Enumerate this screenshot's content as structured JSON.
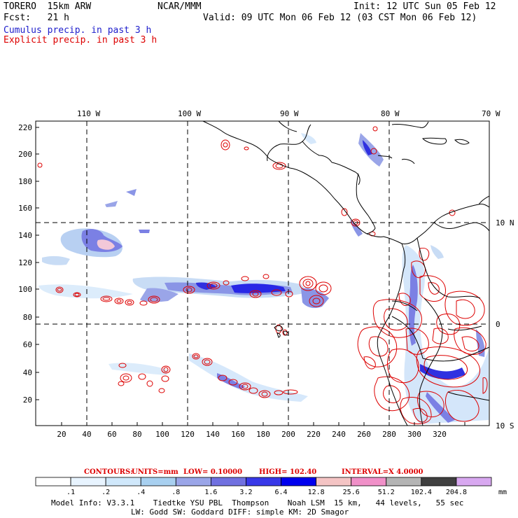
{
  "header": {
    "model": "TORERO  15km ARW",
    "org": "NCAR/MMM",
    "init": "Init: 12 UTC Sun 05 Feb 12",
    "fcst": "Fcst:   21 h",
    "valid": "Valid: 09 UTC Mon 06 Feb 12 (03 CST Mon 06 Feb 12)",
    "legend_cumulus": "Cumulus precip. in past 3 h",
    "legend_explicit": "Explicit precip. in past 3 h"
  },
  "colors": {
    "cumulus": "#1a1acc",
    "explicit": "#dd0000",
    "coast": "#000000"
  },
  "map": {
    "top_labels": [
      "110 W",
      "100 W",
      "90 W",
      "80 W",
      "70 W"
    ],
    "right_labels": [
      "10 N",
      "0",
      "10 S"
    ],
    "y_ticks": [
      "220",
      "200",
      "180",
      "160",
      "140",
      "120",
      "100",
      "80",
      "60",
      "40",
      "20"
    ],
    "x_ticks": [
      "20",
      "40",
      "60",
      "80",
      "100",
      "120",
      "140",
      "160",
      "180",
      "200",
      "220",
      "240",
      "260",
      "280",
      "300",
      "320"
    ]
  },
  "contour_info": {
    "label": "CONTOURS:",
    "units": "UNITS=mm",
    "low": "LOW= 0.10000",
    "high": "HIGH=  102.40",
    "interval": "INTERVAL=X  4.0000"
  },
  "colorbar": {
    "unit": "mm",
    "labels": [
      ".1",
      ".2",
      ".4",
      ".8",
      "1.6",
      "3.2",
      "6.4",
      "12.8",
      "25.6",
      "51.2",
      "102.4",
      "204.8"
    ],
    "colors": [
      "#ffffff",
      "#e8f4ff",
      "#d0e8fb",
      "#a8d0f0",
      "#9aa5e8",
      "#7070e0",
      "#3838e8",
      "#0000ee",
      "#f4c4c4",
      "#f090c8",
      "#b4b4b4",
      "#404040",
      "#d8a8f0"
    ]
  },
  "footer": {
    "line1": "Model Info: V3.3.1    Tiedtke YSU PBL  Thompson    Noah LSM  15 km,   44 levels,   55 sec",
    "line2": "LW: Godd SW: Goddard DIFF: simple KM: 2D Smagor"
  }
}
